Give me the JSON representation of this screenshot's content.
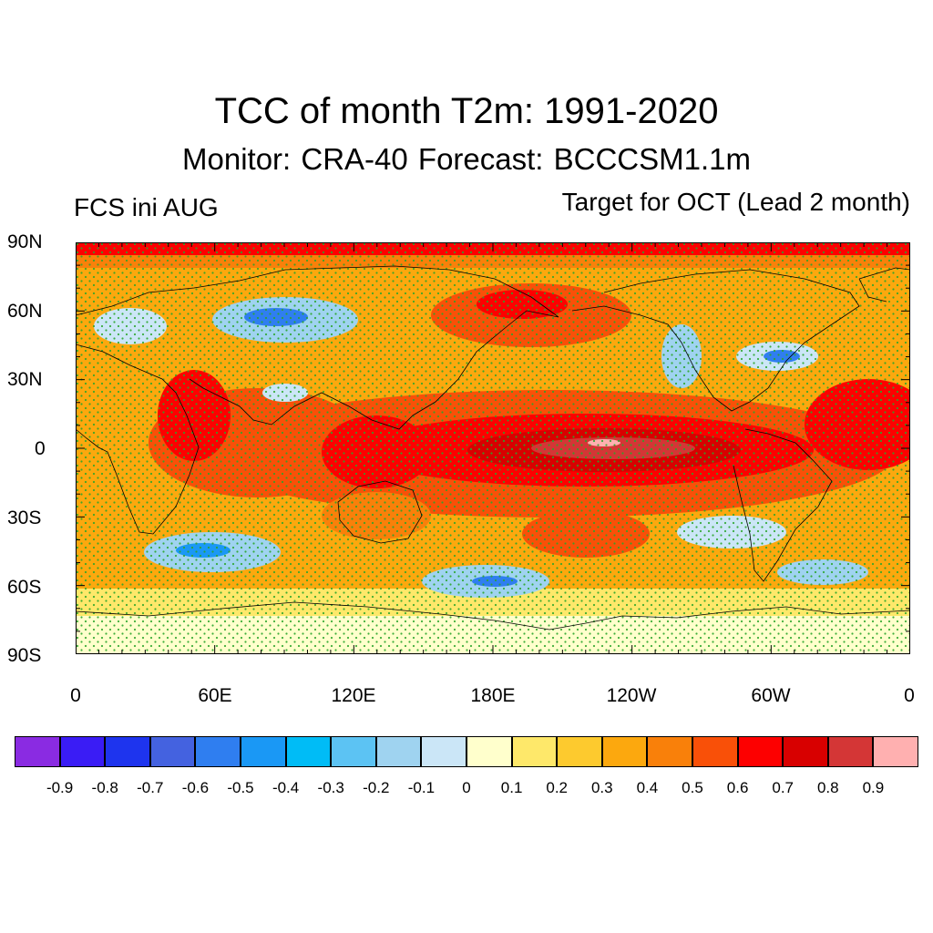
{
  "header": {
    "title": "TCC of month T2m: 1991-2020",
    "subtitle": "Monitor: CRA-40   Forecast: BCCCSM1.1m",
    "left_label": "FCS ini AUG",
    "right_label": "Target for OCT (Lead 2 month)"
  },
  "map": {
    "projection": "equirectangular",
    "lat_range": [
      -90,
      90
    ],
    "lon_range": [
      0,
      360
    ],
    "lat_ticks": [
      "90N",
      "60N",
      "30N",
      "0",
      "30S",
      "60S",
      "90S"
    ],
    "lon_ticks": [
      "0",
      "60E",
      "120E",
      "180E",
      "120W",
      "60W",
      "0"
    ],
    "field": "Temporal correlation coefficient (TCC) of monthly 2m temperature",
    "stipple_color": "#2aa52a",
    "coastline_color": "#000000"
  },
  "colorbar": {
    "colors": [
      "#8a2be2",
      "#3a1cf5",
      "#1e34ee",
      "#4462e0",
      "#2f7ef0",
      "#1a98f5",
      "#00bcf6",
      "#5cc3f3",
      "#9fd3f0",
      "#cbe6f7",
      "#ffffcc",
      "#fee86a",
      "#fdca2e",
      "#fca80e",
      "#f9800a",
      "#f95008",
      "#fd0000",
      "#d80000",
      "#d43636",
      "#ffb0b0"
    ],
    "labels": [
      "-0.9",
      "-0.8",
      "-0.7",
      "-0.6",
      "-0.5",
      "-0.4",
      "-0.3",
      "-0.2",
      "-0.1",
      "0",
      "0.1",
      "0.2",
      "0.3",
      "0.4",
      "0.5",
      "0.6",
      "0.7",
      "0.8",
      "0.9"
    ]
  }
}
